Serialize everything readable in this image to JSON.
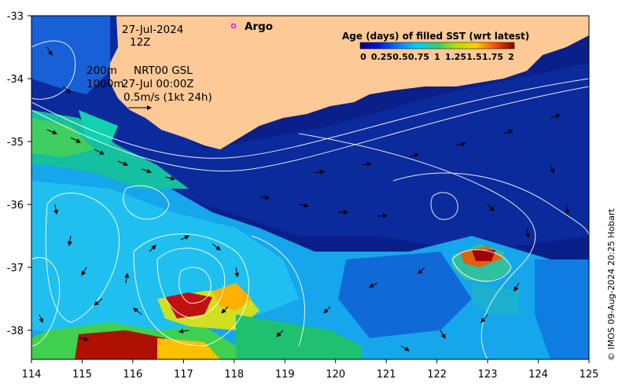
{
  "map": {
    "x_ticks": [
      "114",
      "115",
      "116",
      "117",
      "118",
      "119",
      "120",
      "121",
      "122",
      "123",
      "124",
      "125"
    ],
    "y_ticks": [
      "-33",
      "-34",
      "-35",
      "-36",
      "-37",
      "-38"
    ],
    "date_label": "27-Jul-2024",
    "time_label": "12Z",
    "argo_label": "Argo",
    "depth_label_1": "200m",
    "depth_label_2": "1000m",
    "product_label": "NRT00 GSL",
    "valid_time_label": "27-Jul 00:00Z",
    "scale_arrow_label": "0.5m/s (1kt 24h)",
    "credit": "© IMOS 09-Aug-2024 20:25 Hobart",
    "land_color": "#fcc997",
    "argo_color": "#ff00ff"
  },
  "legend": {
    "title": "Age (days) of filled SST (wrt latest)",
    "ticks": [
      "0",
      "0.25",
      "0.5",
      "0.75",
      "1",
      "1.25",
      "1.5",
      "1.75",
      "2"
    ]
  }
}
